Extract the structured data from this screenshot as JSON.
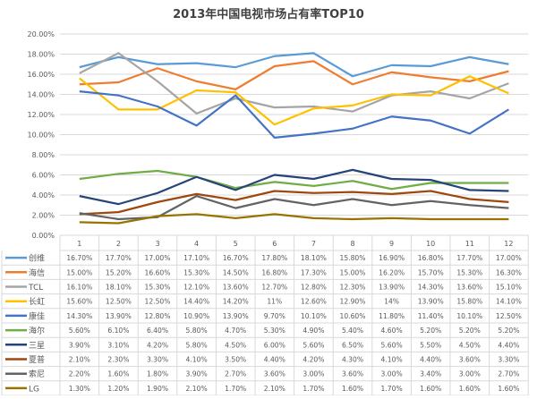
{
  "chart_data": {
    "type": "line",
    "title": "2013年中国电视市场占有率TOP10",
    "categories": [
      "1",
      "2",
      "3",
      "4",
      "5",
      "6",
      "7",
      "8",
      "9",
      "10",
      "11",
      "12"
    ],
    "ylim": [
      0,
      20
    ],
    "yticks": [
      "0.00%",
      "2.00%",
      "4.00%",
      "6.00%",
      "8.00%",
      "10.00%",
      "12.00%",
      "14.00%",
      "16.00%",
      "18.00%",
      "20.00%"
    ],
    "grid": true,
    "legend": "data-table-left",
    "series": [
      {
        "name": "创维",
        "color": "#5b9bd5",
        "values": [
          16.7,
          17.7,
          17.0,
          17.1,
          16.7,
          17.8,
          18.1,
          15.8,
          16.9,
          16.8,
          17.7,
          17.0
        ],
        "labels": [
          "16.70%",
          "17.70%",
          "17.00%",
          "17.10%",
          "16.70%",
          "17.80%",
          "18.10%",
          "15.80%",
          "16.90%",
          "16.80%",
          "17.70%",
          "17.00%"
        ]
      },
      {
        "name": "海信",
        "color": "#ed7d31",
        "values": [
          15.0,
          15.2,
          16.6,
          15.3,
          14.5,
          16.8,
          17.3,
          15.0,
          16.2,
          15.7,
          15.3,
          16.3
        ],
        "labels": [
          "15.00%",
          "15.20%",
          "16.60%",
          "15.30%",
          "14.50%",
          "16.80%",
          "17.30%",
          "15.00%",
          "16.20%",
          "15.70%",
          "15.30%",
          "16.30%"
        ]
      },
      {
        "name": "TCL",
        "color": "#a5a5a5",
        "values": [
          16.1,
          18.1,
          15.3,
          12.1,
          13.6,
          12.7,
          12.8,
          12.3,
          13.9,
          14.3,
          13.6,
          15.1
        ],
        "labels": [
          "16.10%",
          "18.10%",
          "15.30%",
          "12.10%",
          "13.60%",
          "12.70%",
          "12.80%",
          "12.30%",
          "13.90%",
          "14.30%",
          "13.60%",
          "15.10%"
        ]
      },
      {
        "name": "长虹",
        "color": "#ffc000",
        "values": [
          15.6,
          12.5,
          12.5,
          14.4,
          14.2,
          11,
          12.6,
          12.9,
          14,
          13.9,
          15.8,
          14.1
        ],
        "labels": [
          "15.60%",
          "12.50%",
          "12.50%",
          "14.40%",
          "14.20%",
          "11%",
          "12.60%",
          "12.90%",
          "14%",
          "13.90%",
          "15.80%",
          "14.10%"
        ]
      },
      {
        "name": "康佳",
        "color": "#4472c4",
        "values": [
          14.3,
          13.9,
          12.8,
          10.9,
          13.9,
          9.7,
          10.1,
          10.6,
          11.8,
          11.4,
          10.1,
          12.5
        ],
        "labels": [
          "14.30%",
          "13.90%",
          "12.80%",
          "10.90%",
          "13.90%",
          "9.70%",
          "10.10%",
          "10.60%",
          "11.80%",
          "11.40%",
          "10.10%",
          "12.50%"
        ]
      },
      {
        "name": "海尔",
        "color": "#70ad47",
        "values": [
          5.6,
          6.1,
          6.4,
          5.8,
          4.7,
          5.3,
          4.9,
          5.4,
          4.6,
          5.2,
          5.2,
          5.2
        ],
        "labels": [
          "5.60%",
          "6.10%",
          "6.40%",
          "5.80%",
          "4.70%",
          "5.30%",
          "4.90%",
          "5.40%",
          "4.60%",
          "5.20%",
          "5.20%",
          "5.20%"
        ]
      },
      {
        "name": "三星",
        "color": "#264478",
        "values": [
          3.9,
          3.1,
          4.2,
          5.8,
          4.5,
          6.0,
          5.6,
          6.5,
          5.6,
          5.5,
          4.5,
          4.4
        ],
        "labels": [
          "3.90%",
          "3.10%",
          "4.20%",
          "5.80%",
          "4.50%",
          "6.00%",
          "5.60%",
          "6.50%",
          "5.60%",
          "5.50%",
          "4.50%",
          "4.40%"
        ]
      },
      {
        "name": "夏普",
        "color": "#9e480e",
        "values": [
          2.1,
          2.3,
          3.3,
          4.1,
          3.5,
          4.4,
          4.2,
          4.3,
          4.1,
          4.4,
          3.6,
          3.3
        ],
        "labels": [
          "2.10%",
          "2.30%",
          "3.30%",
          "4.10%",
          "3.50%",
          "4.40%",
          "4.20%",
          "4.30%",
          "4.10%",
          "4.40%",
          "3.60%",
          "3.30%"
        ]
      },
      {
        "name": "索尼",
        "color": "#636363",
        "values": [
          2.2,
          1.6,
          1.8,
          3.9,
          2.7,
          3.6,
          3.0,
          3.6,
          3.0,
          3.4,
          3.0,
          2.7
        ],
        "labels": [
          "2.20%",
          "1.60%",
          "1.80%",
          "3.90%",
          "2.70%",
          "3.60%",
          "3.00%",
          "3.60%",
          "3.00%",
          "3.40%",
          "3.00%",
          "2.70%"
        ]
      },
      {
        "name": "LG",
        "color": "#997300",
        "values": [
          1.3,
          1.2,
          1.9,
          2.1,
          1.7,
          2.1,
          1.7,
          1.6,
          1.7,
          1.6,
          1.6,
          1.6
        ],
        "labels": [
          "1.30%",
          "1.20%",
          "1.90%",
          "2.10%",
          "1.70%",
          "2.10%",
          "1.70%",
          "1.60%",
          "1.70%",
          "1.60%",
          "1.60%",
          "1.60%"
        ]
      }
    ]
  }
}
